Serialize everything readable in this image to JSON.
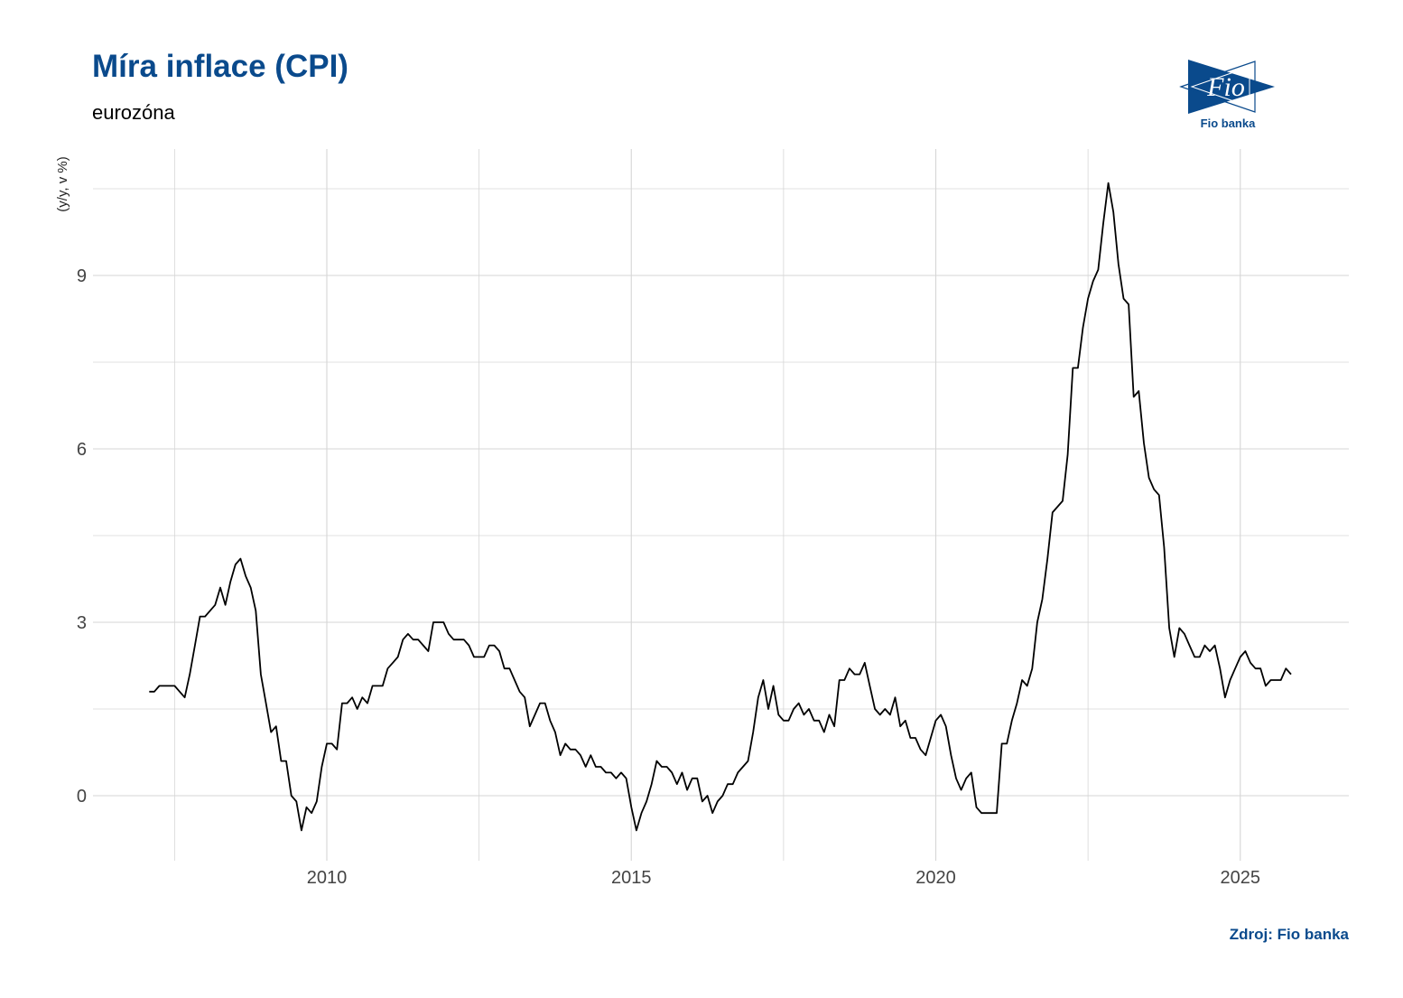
{
  "title": "Míra inflace (CPI)",
  "subtitle": "eurozóna",
  "caption": "Zdroj: Fio banka",
  "logo": {
    "text": "Fio",
    "label": "Fio banka",
    "color": "#0a4a8c"
  },
  "chart_data": {
    "type": "line",
    "title": "Míra inflace (CPI)",
    "subtitle": "eurozóna",
    "ylabel": "(y/y, v %)",
    "xlabel": "",
    "xlim": [
      2006.6,
      2026.8
    ],
    "ylim": [
      -1.1,
      11.2
    ],
    "xticks": [
      2010,
      2015,
      2020,
      2025
    ],
    "xtick_labels": [
      "2010",
      "2015",
      "2020",
      "2025"
    ],
    "yticks": [
      0,
      3,
      6,
      9
    ],
    "ytick_labels": [
      "0",
      "3",
      "6",
      "9"
    ],
    "grid": true,
    "line_color": "#000000",
    "start": "2007-01",
    "frequency": "monthly",
    "values": [
      1.8,
      1.8,
      1.9,
      1.9,
      1.9,
      1.9,
      1.8,
      1.7,
      2.1,
      2.6,
      3.1,
      3.1,
      3.2,
      3.3,
      3.6,
      3.3,
      3.7,
      4.0,
      4.1,
      3.8,
      3.6,
      3.2,
      2.1,
      1.6,
      1.1,
      1.2,
      0.6,
      0.6,
      0.0,
      -0.1,
      -0.6,
      -0.2,
      -0.3,
      -0.1,
      0.5,
      0.9,
      0.9,
      0.8,
      1.6,
      1.6,
      1.7,
      1.5,
      1.7,
      1.6,
      1.9,
      1.9,
      1.9,
      2.2,
      2.3,
      2.4,
      2.7,
      2.8,
      2.7,
      2.7,
      2.6,
      2.5,
      3.0,
      3.0,
      3.0,
      2.8,
      2.7,
      2.7,
      2.7,
      2.6,
      2.4,
      2.4,
      2.4,
      2.6,
      2.6,
      2.5,
      2.2,
      2.2,
      2.0,
      1.8,
      1.7,
      1.2,
      1.4,
      1.6,
      1.6,
      1.3,
      1.1,
      0.7,
      0.9,
      0.8,
      0.8,
      0.7,
      0.5,
      0.7,
      0.5,
      0.5,
      0.4,
      0.4,
      0.3,
      0.4,
      0.3,
      -0.2,
      -0.6,
      -0.3,
      -0.1,
      0.2,
      0.6,
      0.5,
      0.5,
      0.4,
      0.2,
      0.4,
      0.1,
      0.3,
      0.3,
      -0.1,
      0.0,
      -0.3,
      -0.1,
      0.0,
      0.2,
      0.2,
      0.4,
      0.5,
      0.6,
      1.1,
      1.7,
      2.0,
      1.5,
      1.9,
      1.4,
      1.3,
      1.3,
      1.5,
      1.6,
      1.4,
      1.5,
      1.3,
      1.3,
      1.1,
      1.4,
      1.2,
      2.0,
      2.0,
      2.2,
      2.1,
      2.1,
      2.3,
      1.9,
      1.5,
      1.4,
      1.5,
      1.4,
      1.7,
      1.2,
      1.3,
      1.0,
      1.0,
      0.8,
      0.7,
      1.0,
      1.3,
      1.4,
      1.2,
      0.7,
      0.3,
      0.1,
      0.3,
      0.4,
      -0.2,
      -0.3,
      -0.3,
      -0.3,
      -0.3,
      0.9,
      0.9,
      1.3,
      1.6,
      2.0,
      1.9,
      2.2,
      3.0,
      3.4,
      4.1,
      4.9,
      5.0,
      5.1,
      5.9,
      7.4,
      7.4,
      8.1,
      8.6,
      8.9,
      9.1,
      9.9,
      10.6,
      10.1,
      9.2,
      8.6,
      8.5,
      6.9,
      7.0,
      6.1,
      5.5,
      5.3,
      5.2,
      4.3,
      2.9,
      2.4,
      2.9,
      2.8,
      2.6,
      2.4,
      2.4,
      2.6,
      2.5,
      2.6,
      2.2,
      1.7,
      2.0,
      2.2,
      2.4,
      2.5,
      2.3,
      2.2,
      2.2,
      1.9,
      2.0,
      2.0,
      2.0,
      2.2,
      2.1
    ]
  }
}
